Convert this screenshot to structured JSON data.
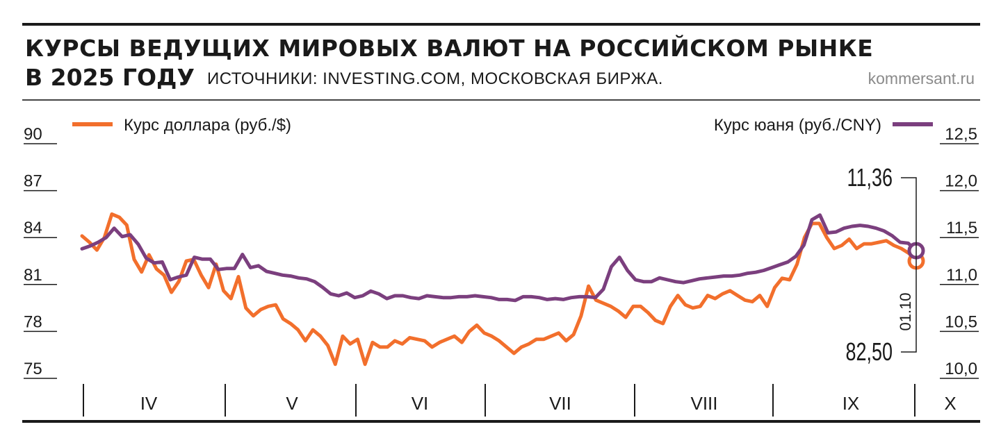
{
  "title_line1": "КУРСЫ ВЕДУЩИХ МИРОВЫХ ВАЛЮТ НА РОССИЙСКОМ РЫНКЕ",
  "title_line2": "В 2025 ГОДУ",
  "source": "ИСТОЧНИКИ: INVESTING.COM, МОСКОВСКАЯ БИРЖА.",
  "site": "kommersant.ru",
  "colors": {
    "usd": "#f26f2c",
    "cny": "#7b3f7e",
    "text": "#1a1a1a",
    "grid": "#1a1a1a"
  },
  "chart_data": {
    "type": "line",
    "title": "КУРСЫ ВЕДУЩИХ МИРОВЫХ ВАЛЮТ НА РОССИЙСКОМ РЫНКЕ В 2025 ГОДУ",
    "months": [
      "IV",
      "V",
      "VI",
      "VII",
      "VIII",
      "IX",
      "X"
    ],
    "left_axis": {
      "label": "Курс доллара (руб./$)",
      "ylim": [
        75,
        90
      ],
      "ticks": [
        "90",
        "87",
        "84",
        "81",
        "78",
        "75"
      ],
      "tick_values": [
        90,
        87,
        84,
        81,
        78,
        75
      ]
    },
    "right_axis": {
      "label": "Курс юаня (руб./CNY)",
      "ylim": [
        10.0,
        12.5
      ],
      "ticks": [
        "12,5",
        "12,0",
        "11,5",
        "11,0",
        "10,5",
        "10,0"
      ],
      "tick_values": [
        12.5,
        12.0,
        11.5,
        11.0,
        10.5,
        10.0
      ]
    },
    "series": [
      {
        "name": "Курс доллара (руб./$)",
        "axis": "left",
        "values": [
          84.1,
          83.7,
          83.2,
          84.0,
          85.5,
          85.3,
          84.8,
          82.6,
          81.8,
          82.9,
          82.0,
          81.6,
          80.5,
          81.2,
          82.5,
          82.6,
          81.6,
          80.8,
          82.3,
          80.6,
          80.1,
          81.5,
          79.5,
          79.0,
          79.4,
          79.6,
          79.7,
          78.8,
          78.5,
          78.1,
          77.4,
          78.1,
          77.7,
          77.1,
          75.9,
          77.7,
          77.2,
          77.5,
          75.9,
          77.3,
          77.0,
          77.0,
          77.4,
          77.2,
          77.6,
          77.5,
          77.4,
          77.0,
          77.3,
          77.5,
          77.7,
          77.3,
          78.0,
          78.4,
          77.9,
          77.7,
          77.4,
          77.0,
          76.6,
          77.0,
          77.2,
          77.5,
          77.5,
          77.7,
          77.9,
          77.4,
          77.8,
          79.0,
          80.9,
          80.0,
          79.8,
          79.6,
          79.3,
          78.9,
          79.6,
          79.6,
          79.2,
          78.7,
          78.5,
          79.6,
          80.3,
          79.7,
          79.5,
          79.6,
          80.3,
          80.1,
          80.4,
          80.6,
          80.3,
          80.0,
          79.9,
          80.3,
          79.6,
          80.8,
          81.4,
          81.3,
          82.3,
          84.0,
          84.9,
          84.9,
          84.0,
          83.3,
          83.5,
          83.9,
          83.3,
          83.6,
          83.6,
          83.7,
          83.8,
          83.5,
          83.3,
          83.0,
          82.5
        ]
      },
      {
        "name": "Курс юаня (руб./CNY)",
        "axis": "right",
        "values": [
          11.38,
          11.41,
          11.45,
          11.5,
          11.6,
          11.51,
          11.53,
          11.43,
          11.28,
          11.23,
          11.24,
          11.05,
          11.08,
          11.1,
          11.29,
          11.27,
          11.27,
          11.16,
          11.17,
          11.17,
          11.32,
          11.18,
          11.2,
          11.14,
          11.12,
          11.1,
          11.09,
          11.07,
          11.06,
          11.03,
          10.97,
          10.9,
          10.88,
          10.91,
          10.86,
          10.88,
          10.93,
          10.9,
          10.85,
          10.88,
          10.88,
          10.86,
          10.85,
          10.88,
          10.87,
          10.86,
          10.86,
          10.87,
          10.87,
          10.88,
          10.87,
          10.86,
          10.84,
          10.84,
          10.83,
          10.87,
          10.87,
          10.86,
          10.84,
          10.85,
          10.84,
          10.86,
          10.87,
          10.87,
          10.86,
          10.95,
          11.19,
          11.29,
          11.15,
          11.05,
          11.03,
          11.03,
          11.07,
          11.05,
          11.03,
          11.02,
          11.04,
          11.06,
          11.07,
          11.08,
          11.09,
          11.09,
          11.1,
          11.12,
          11.13,
          11.15,
          11.18,
          11.21,
          11.24,
          11.3,
          11.42,
          11.69,
          11.74,
          11.55,
          11.56,
          11.6,
          11.62,
          11.63,
          11.62,
          11.6,
          11.57,
          11.52,
          11.45,
          11.44,
          11.36
        ]
      }
    ],
    "annotations": {
      "cny_last": "11,36",
      "usd_last": "82,50",
      "date": "01.10"
    },
    "legend": [
      "Курс доллара (руб./$)",
      "Курс юаня (руб./CNY)"
    ]
  }
}
